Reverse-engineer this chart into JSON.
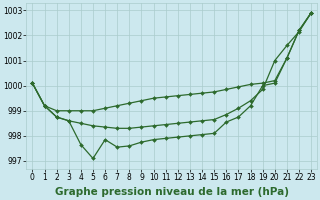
{
  "title": "",
  "xlabel": "Graphe pression niveau de la mer (hPa)",
  "x": [
    0,
    1,
    2,
    3,
    4,
    5,
    6,
    7,
    8,
    9,
    10,
    11,
    12,
    13,
    14,
    15,
    16,
    17,
    18,
    19,
    20,
    21,
    22,
    23
  ],
  "line1": [
    1000.1,
    999.2,
    999.0,
    999.0,
    999.0,
    999.0,
    999.1,
    999.2,
    999.3,
    999.4,
    999.5,
    999.55,
    999.6,
    999.65,
    999.7,
    999.75,
    999.85,
    999.95,
    1000.05,
    1000.1,
    1000.2,
    1001.1,
    1002.2,
    1002.9
  ],
  "line2": [
    1000.1,
    999.2,
    998.75,
    998.6,
    998.5,
    998.4,
    998.35,
    998.3,
    998.3,
    998.35,
    998.4,
    998.45,
    998.5,
    998.55,
    998.6,
    998.65,
    998.85,
    999.1,
    999.4,
    999.85,
    1001.0,
    1001.6,
    1002.15,
    1002.9
  ],
  "line3": [
    1000.1,
    999.2,
    998.75,
    998.6,
    997.65,
    997.1,
    997.85,
    997.55,
    997.6,
    997.75,
    997.85,
    997.9,
    997.95,
    998.0,
    998.05,
    998.1,
    998.55,
    998.75,
    999.2,
    1000.0,
    1000.1,
    1001.1,
    1002.2,
    1002.9
  ],
  "line_color": "#2d6a2d",
  "marker": "D",
  "markersize": 2.0,
  "bg_color": "#cce8ee",
  "grid_color": "#aacccc",
  "ylim": [
    996.7,
    1003.3
  ],
  "yticks": [
    997,
    998,
    999,
    1000,
    1001,
    1002,
    1003
  ],
  "xticks": [
    0,
    1,
    2,
    3,
    4,
    5,
    6,
    7,
    8,
    9,
    10,
    11,
    12,
    13,
    14,
    15,
    16,
    17,
    18,
    19,
    20,
    21,
    22,
    23
  ],
  "xlabel_fontsize": 7.5,
  "tick_fontsize": 5.5,
  "linewidth": 0.9
}
